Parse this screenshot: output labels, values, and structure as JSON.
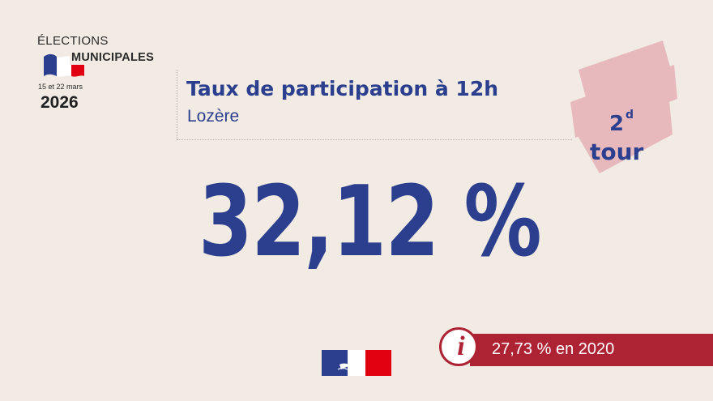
{
  "logo": {
    "elections": "ÉLECTIONS",
    "municipales": "MUNICIPALES",
    "dates": "15 et 22 mars",
    "year": "2026"
  },
  "header": {
    "title": "Taux de participation à 12h",
    "subtitle": "Lozère"
  },
  "round": {
    "number": "2",
    "suffix": "d",
    "word": "tour"
  },
  "result": {
    "participation": "32,12 %"
  },
  "comparison": {
    "text": "27,73 % en 2020"
  },
  "colors": {
    "background": "#f1ebe3",
    "accent_blue": "#2b3f8e",
    "accent_red": "#ad2333",
    "ribbon_pink": "#e8b9bc"
  },
  "icons": {
    "info": "info-icon",
    "flag": "french-flag-icon",
    "marianne": "marianne-logo"
  }
}
